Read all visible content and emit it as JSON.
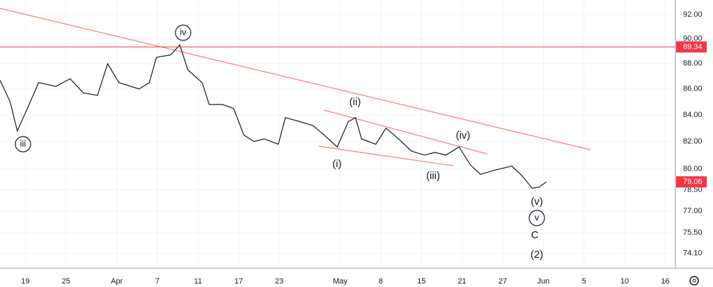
{
  "chart_data": {
    "type": "line",
    "x": [
      -2.5,
      -1.5,
      -0.8,
      0.2,
      1.3,
      3,
      4.4,
      5.7,
      7.1,
      8.1,
      9.2,
      11.2,
      12.2,
      12.9,
      14.3,
      15.2,
      16,
      17.4,
      18.1,
      19.4,
      20.5,
      21.5,
      22.5,
      23.5,
      24.9,
      25.6,
      27,
      28.3,
      29.4,
      30.7,
      31.8,
      32.5,
      33.1,
      34.5,
      35.5,
      36.6,
      38,
      39.3,
      40.3,
      41.4,
      42.7,
      43.8,
      44.8,
      46.2,
      47.9,
      48.9,
      49.9,
      50.6,
      51.3
    ],
    "values": [
      86.7,
      85,
      82.8,
      84.5,
      86.5,
      86.2,
      86.8,
      85.7,
      85.5,
      88,
      86.5,
      86,
      86.5,
      88.5,
      88.7,
      89.5,
      87.5,
      86.5,
      84.8,
      84.8,
      84.5,
      82.5,
      82,
      82.2,
      81.8,
      83.8,
      83.5,
      83.2,
      82.5,
      81.6,
      83.5,
      83.8,
      82.2,
      81.8,
      83,
      82.3,
      81.3,
      81,
      81.2,
      81,
      81.6,
      80.3,
      79.6,
      79.9,
      80.2,
      79.5,
      78.6,
      78.7,
      79.06
    ],
    "color": "#131722",
    "xlim": [
      -2.5,
      64
    ],
    "xticks": [
      {
        "value": 0,
        "label": "19"
      },
      {
        "value": 4,
        "label": "25"
      },
      {
        "value": 9,
        "label": "Apr"
      },
      {
        "value": 13,
        "label": "7"
      },
      {
        "value": 17,
        "label": "11"
      },
      {
        "value": 21,
        "label": "17"
      },
      {
        "value": 25,
        "label": "23"
      },
      {
        "value": 31,
        "label": "May"
      },
      {
        "value": 35,
        "label": "8"
      },
      {
        "value": 39,
        "label": "15"
      },
      {
        "value": 43,
        "label": "21"
      },
      {
        "value": 47,
        "label": "27"
      },
      {
        "value": 51,
        "label": "Jun"
      },
      {
        "value": 55,
        "label": "5"
      },
      {
        "value": 59,
        "label": "10"
      },
      {
        "value": 63,
        "label": "16"
      }
    ],
    "ylim": [
      73.16,
      93.22
    ],
    "log_scale": true,
    "yticks": [
      {
        "value": 92,
        "label": "92.00"
      },
      {
        "value": 90,
        "label": "90.00"
      },
      {
        "value": 88,
        "label": "88.00"
      },
      {
        "value": 86,
        "label": "86.00"
      },
      {
        "value": 84,
        "label": "84.00"
      },
      {
        "value": 82,
        "label": "82.00"
      },
      {
        "value": 80,
        "label": "80.00"
      },
      {
        "value": 78.5,
        "label": "78.50"
      },
      {
        "value": 77,
        "label": "77.00"
      },
      {
        "value": 75.5,
        "label": "75.50"
      },
      {
        "value": 74.1,
        "label": "74.10"
      }
    ],
    "grid": true,
    "price_markers": [
      89.34,
      79.06
    ],
    "annotations": [
      "iii",
      "iv",
      "(ii)",
      "(i)",
      "(iii)",
      "(iv)",
      "(v)",
      "v",
      "C",
      "(2)"
    ]
  }
}
